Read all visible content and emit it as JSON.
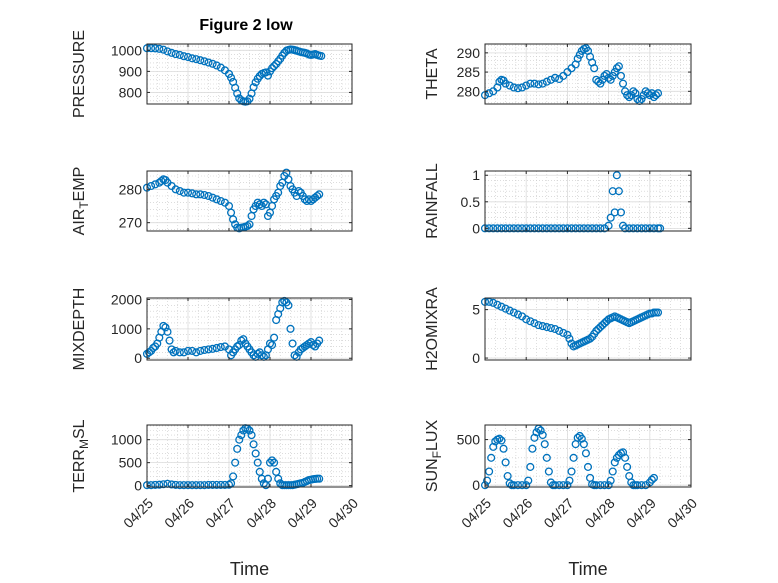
{
  "figure_title": "Figure 2 low",
  "x_tick_labels": [
    "04/25",
    "04/26",
    "04/27",
    "04/28",
    "04/29",
    "04/30"
  ],
  "marker_color": "#0072BD",
  "chart_data": [
    {
      "type": "scatter",
      "ylabel": "PRESSURE",
      "yticks": [
        800,
        900,
        1000
      ],
      "ylim": [
        745,
        1030
      ],
      "xlabel": "",
      "x": [
        0,
        0.1,
        0.2,
        0.3,
        0.4,
        0.5,
        0.6,
        0.7,
        0.8,
        0.9,
        1.0,
        1.1,
        1.2,
        1.3,
        1.4,
        1.5,
        1.6,
        1.7,
        1.8,
        1.9,
        2.0,
        2.05,
        2.1,
        2.15,
        2.2,
        2.25,
        2.3,
        2.35,
        2.4,
        2.45,
        2.5,
        2.55,
        2.6,
        2.65,
        2.7,
        2.75,
        2.8,
        2.85,
        2.9,
        2.95,
        3.0,
        3.05,
        3.1,
        3.15,
        3.2,
        3.25,
        3.3,
        3.35,
        3.4,
        3.45,
        3.5,
        3.55,
        3.6,
        3.65,
        3.7,
        3.75,
        3.8,
        3.85,
        3.9,
        3.95,
        4.0,
        4.05,
        4.1,
        4.15,
        4.2,
        4.25
      ],
      "y": [
        1010,
        1010,
        1009,
        1007,
        1003,
        995,
        988,
        982,
        978,
        972,
        968,
        962,
        958,
        953,
        948,
        942,
        936,
        928,
        918,
        905,
        888,
        870,
        850,
        822,
        795,
        772,
        762,
        758,
        756,
        758,
        770,
        795,
        825,
        848,
        865,
        878,
        888,
        892,
        895,
        880,
        900,
        915,
        925,
        935,
        948,
        960,
        975,
        988,
        998,
        1002,
        1004,
        1003,
        1001,
        998,
        995,
        992,
        990,
        988,
        985,
        980,
        978,
        980,
        982,
        978,
        975,
        973
      ]
    },
    {
      "type": "scatter",
      "ylabel": "THETA",
      "yticks": [
        280,
        285,
        290
      ],
      "ylim": [
        276.7,
        292.3
      ],
      "xlabel": "",
      "x": [
        0,
        0.1,
        0.2,
        0.3,
        0.35,
        0.4,
        0.45,
        0.5,
        0.6,
        0.7,
        0.8,
        0.9,
        1.0,
        1.1,
        1.2,
        1.3,
        1.4,
        1.5,
        1.6,
        1.7,
        1.8,
        1.9,
        2.0,
        2.1,
        2.2,
        2.25,
        2.3,
        2.35,
        2.4,
        2.45,
        2.5,
        2.55,
        2.6,
        2.65,
        2.7,
        2.75,
        2.8,
        2.85,
        2.9,
        2.95,
        3.0,
        3.05,
        3.1,
        3.15,
        3.2,
        3.25,
        3.3,
        3.35,
        3.4,
        3.45,
        3.5,
        3.55,
        3.6,
        3.65,
        3.7,
        3.75,
        3.8,
        3.85,
        3.9,
        3.95,
        4.0,
        4.05,
        4.1,
        4.15,
        4.2
      ],
      "y": [
        279,
        279.5,
        280,
        281,
        282.5,
        283,
        282.8,
        282,
        281.5,
        281,
        280.8,
        281,
        281.5,
        282,
        282,
        281.8,
        282,
        282.5,
        283,
        283.5,
        283.2,
        284,
        285,
        286,
        287,
        288.5,
        289.5,
        290.5,
        291,
        291.2,
        290.5,
        289,
        287.5,
        286,
        283,
        282.5,
        282,
        283,
        284,
        284.5,
        283.5,
        283,
        284,
        285,
        286,
        286.5,
        284,
        282,
        280,
        279,
        278.5,
        279,
        280,
        279.5,
        278,
        277.5,
        278,
        279,
        280,
        279.5,
        279,
        279.5,
        278.5,
        279,
        279.5
      ]
    },
    {
      "type": "scatter",
      "ylabel": "AIR_TEMP",
      "yticks": [
        270,
        280
      ],
      "ylim": [
        267.5,
        285.5
      ],
      "xlabel": "",
      "x": [
        0,
        0.1,
        0.2,
        0.3,
        0.35,
        0.4,
        0.45,
        0.5,
        0.6,
        0.7,
        0.8,
        0.9,
        1.0,
        1.1,
        1.2,
        1.3,
        1.4,
        1.5,
        1.6,
        1.7,
        1.8,
        1.9,
        2.0,
        2.05,
        2.1,
        2.15,
        2.2,
        2.25,
        2.3,
        2.35,
        2.4,
        2.45,
        2.5,
        2.55,
        2.6,
        2.65,
        2.7,
        2.75,
        2.8,
        2.85,
        2.9,
        2.95,
        3.0,
        3.05,
        3.1,
        3.15,
        3.2,
        3.25,
        3.3,
        3.35,
        3.4,
        3.45,
        3.5,
        3.55,
        3.6,
        3.65,
        3.7,
        3.75,
        3.8,
        3.85,
        3.9,
        3.95,
        4.0,
        4.05,
        4.1,
        4.15,
        4.2
      ],
      "y": [
        280.5,
        281,
        281.5,
        282,
        282.5,
        283,
        282.8,
        282,
        281,
        280,
        279.5,
        279,
        279,
        278.8,
        278.5,
        278.5,
        278.3,
        278,
        277.5,
        277,
        276.5,
        276,
        275,
        273,
        271,
        269.5,
        268.5,
        268.3,
        268.5,
        268.6,
        268.8,
        269,
        269.5,
        272,
        274,
        275,
        276,
        275.5,
        275,
        276,
        275.5,
        272,
        273,
        275,
        277,
        278,
        279,
        281,
        282,
        284,
        285,
        283,
        281,
        280,
        279,
        278,
        279.5,
        279,
        278,
        277,
        276.5,
        277,
        276.5,
        277,
        277.5,
        278,
        278.5
      ]
    },
    {
      "type": "scatter",
      "ylabel": "RAINFALL",
      "yticks": [
        0,
        0.5,
        1
      ],
      "ylim": [
        -0.05,
        1.08
      ],
      "xlabel": "",
      "x": [
        0,
        0.1,
        0.2,
        0.3,
        0.4,
        0.5,
        0.6,
        0.7,
        0.8,
        0.9,
        1.0,
        1.1,
        1.2,
        1.3,
        1.4,
        1.5,
        1.6,
        1.7,
        1.8,
        1.9,
        2.0,
        2.1,
        2.2,
        2.3,
        2.4,
        2.5,
        2.6,
        2.7,
        2.8,
        2.9,
        3.0,
        3.05,
        3.1,
        3.15,
        3.2,
        3.25,
        3.3,
        3.35,
        3.4,
        3.5,
        3.6,
        3.7,
        3.8,
        3.9,
        4.0,
        4.1,
        4.2,
        4.25
      ],
      "y": [
        0,
        0,
        0,
        0,
        0,
        0,
        0,
        0,
        0,
        0,
        0,
        0,
        0,
        0,
        0,
        0,
        0,
        0,
        0,
        0,
        0,
        0,
        0,
        0,
        0,
        0,
        0,
        0,
        0,
        0,
        0.05,
        0.2,
        0.7,
        0.3,
        1.0,
        0.7,
        0.3,
        0.05,
        0,
        0,
        0,
        0,
        0,
        0,
        0,
        0,
        0,
        0
      ]
    },
    {
      "type": "scatter",
      "ylabel": "MIXDEPTH",
      "yticks": [
        0,
        1000,
        2000
      ],
      "ylim": [
        -60,
        2050
      ],
      "xlabel": "",
      "x": [
        0,
        0.05,
        0.1,
        0.15,
        0.2,
        0.25,
        0.3,
        0.35,
        0.4,
        0.45,
        0.5,
        0.55,
        0.6,
        0.65,
        0.7,
        0.8,
        0.9,
        1.0,
        1.1,
        1.2,
        1.3,
        1.4,
        1.5,
        1.6,
        1.7,
        1.8,
        1.9,
        2.0,
        2.05,
        2.1,
        2.15,
        2.2,
        2.25,
        2.3,
        2.35,
        2.4,
        2.45,
        2.5,
        2.55,
        2.6,
        2.65,
        2.7,
        2.75,
        2.8,
        2.85,
        2.9,
        2.95,
        3.0,
        3.05,
        3.1,
        3.15,
        3.2,
        3.25,
        3.3,
        3.35,
        3.4,
        3.45,
        3.5,
        3.55,
        3.6,
        3.65,
        3.7,
        3.75,
        3.8,
        3.85,
        3.9,
        3.95,
        4.0,
        4.05,
        4.1,
        4.15,
        4.2
      ],
      "y": [
        150,
        200,
        250,
        350,
        400,
        500,
        700,
        900,
        1100,
        1050,
        900,
        600,
        300,
        200,
        250,
        200,
        200,
        250,
        250,
        200,
        250,
        280,
        300,
        320,
        350,
        380,
        400,
        300,
        100,
        200,
        300,
        400,
        450,
        600,
        650,
        500,
        400,
        300,
        200,
        100,
        50,
        150,
        200,
        100,
        50,
        100,
        300,
        500,
        450,
        700,
        1300,
        1500,
        1700,
        1900,
        1950,
        1900,
        1800,
        1000,
        500,
        100,
        50,
        200,
        300,
        350,
        400,
        450,
        500,
        550,
        450,
        400,
        500,
        600
      ]
    },
    {
      "type": "scatter",
      "ylabel": "H2OMIXRA",
      "yticks": [
        0,
        5
      ],
      "ylim": [
        -0.2,
        6.2
      ],
      "xlabel": "",
      "x": [
        0,
        0.1,
        0.2,
        0.3,
        0.4,
        0.5,
        0.6,
        0.7,
        0.8,
        0.9,
        1.0,
        1.1,
        1.2,
        1.3,
        1.4,
        1.5,
        1.6,
        1.7,
        1.8,
        1.9,
        2.0,
        2.05,
        2.1,
        2.15,
        2.2,
        2.25,
        2.3,
        2.35,
        2.4,
        2.45,
        2.5,
        2.55,
        2.6,
        2.65,
        2.7,
        2.75,
        2.8,
        2.85,
        2.9,
        2.95,
        3.0,
        3.05,
        3.1,
        3.15,
        3.2,
        3.25,
        3.3,
        3.35,
        3.4,
        3.45,
        3.5,
        3.55,
        3.6,
        3.65,
        3.7,
        3.75,
        3.8,
        3.85,
        3.9,
        3.95,
        4.0,
        4.05,
        4.1,
        4.15,
        4.2
      ],
      "y": [
        5.8,
        5.8,
        5.7,
        5.5,
        5.3,
        5.1,
        4.9,
        4.7,
        4.5,
        4.3,
        4.0,
        3.8,
        3.6,
        3.4,
        3.3,
        3.2,
        3.1,
        3.0,
        2.8,
        2.6,
        2.4,
        2.0,
        1.5,
        1.2,
        1.3,
        1.4,
        1.5,
        1.6,
        1.7,
        1.8,
        1.9,
        2.0,
        2.2,
        2.5,
        2.8,
        3.0,
        3.2,
        3.4,
        3.6,
        3.8,
        4.0,
        4.1,
        4.2,
        4.3,
        4.2,
        4.1,
        4.0,
        3.9,
        3.8,
        3.7,
        3.6,
        3.7,
        3.8,
        3.9,
        4.0,
        4.1,
        4.2,
        4.3,
        4.4,
        4.5,
        4.6,
        4.6,
        4.7,
        4.7,
        4.7
      ]
    },
    {
      "type": "scatter",
      "ylabel": "TERR_MSL",
      "yticks": [
        0,
        500,
        1000
      ],
      "ylim": [
        -30,
        1320
      ],
      "xlabel": "Time",
      "x": [
        0,
        0.1,
        0.2,
        0.3,
        0.4,
        0.5,
        0.6,
        0.7,
        0.8,
        0.9,
        1.0,
        1.1,
        1.2,
        1.3,
        1.4,
        1.5,
        1.6,
        1.7,
        1.8,
        1.9,
        2.0,
        2.05,
        2.1,
        2.15,
        2.2,
        2.25,
        2.3,
        2.35,
        2.4,
        2.45,
        2.5,
        2.55,
        2.6,
        2.65,
        2.7,
        2.75,
        2.8,
        2.85,
        2.9,
        2.95,
        3.0,
        3.05,
        3.1,
        3.15,
        3.2,
        3.25,
        3.3,
        3.35,
        3.4,
        3.45,
        3.5,
        3.55,
        3.6,
        3.65,
        3.7,
        3.75,
        3.8,
        3.85,
        3.9,
        3.95,
        4.0,
        4.05,
        4.1,
        4.15,
        4.2
      ],
      "y": [
        10,
        10,
        15,
        20,
        30,
        40,
        25,
        15,
        10,
        10,
        10,
        10,
        10,
        10,
        10,
        15,
        15,
        15,
        15,
        15,
        20,
        50,
        200,
        500,
        800,
        1000,
        1100,
        1200,
        1250,
        1240,
        1200,
        1100,
        900,
        700,
        500,
        300,
        150,
        50,
        10,
        150,
        500,
        550,
        500,
        300,
        150,
        50,
        10,
        10,
        10,
        10,
        10,
        10,
        20,
        30,
        40,
        50,
        60,
        80,
        100,
        120,
        130,
        140,
        145,
        150,
        150
      ]
    },
    {
      "type": "scatter",
      "ylabel": "SUN_FLUX",
      "yticks": [
        0,
        500
      ],
      "ylim": [
        -20,
        660
      ],
      "xlabel": "Time",
      "x": [
        0,
        0.05,
        0.1,
        0.15,
        0.2,
        0.25,
        0.3,
        0.35,
        0.4,
        0.45,
        0.5,
        0.55,
        0.6,
        0.65,
        0.7,
        0.8,
        0.9,
        1.0,
        1.05,
        1.1,
        1.15,
        1.2,
        1.25,
        1.3,
        1.35,
        1.4,
        1.45,
        1.5,
        1.55,
        1.6,
        1.65,
        1.7,
        1.8,
        1.9,
        2.0,
        2.05,
        2.1,
        2.15,
        2.2,
        2.25,
        2.3,
        2.35,
        2.4,
        2.45,
        2.5,
        2.55,
        2.6,
        2.65,
        2.7,
        2.8,
        2.9,
        3.0,
        3.05,
        3.1,
        3.15,
        3.2,
        3.25,
        3.3,
        3.35,
        3.4,
        3.45,
        3.5,
        3.55,
        3.6,
        3.65,
        3.7,
        3.8,
        3.9,
        4.0,
        4.05,
        4.1
      ],
      "y": [
        0,
        50,
        150,
        300,
        420,
        480,
        500,
        510,
        490,
        400,
        250,
        100,
        20,
        0,
        0,
        0,
        0,
        0,
        50,
        200,
        400,
        520,
        580,
        620,
        600,
        550,
        450,
        300,
        150,
        30,
        0,
        0,
        0,
        0,
        0,
        50,
        150,
        300,
        450,
        520,
        540,
        510,
        450,
        350,
        200,
        80,
        10,
        0,
        0,
        0,
        0,
        0,
        50,
        150,
        250,
        300,
        330,
        350,
        360,
        300,
        200,
        100,
        30,
        0,
        0,
        0,
        0,
        0,
        30,
        60,
        80
      ]
    }
  ]
}
